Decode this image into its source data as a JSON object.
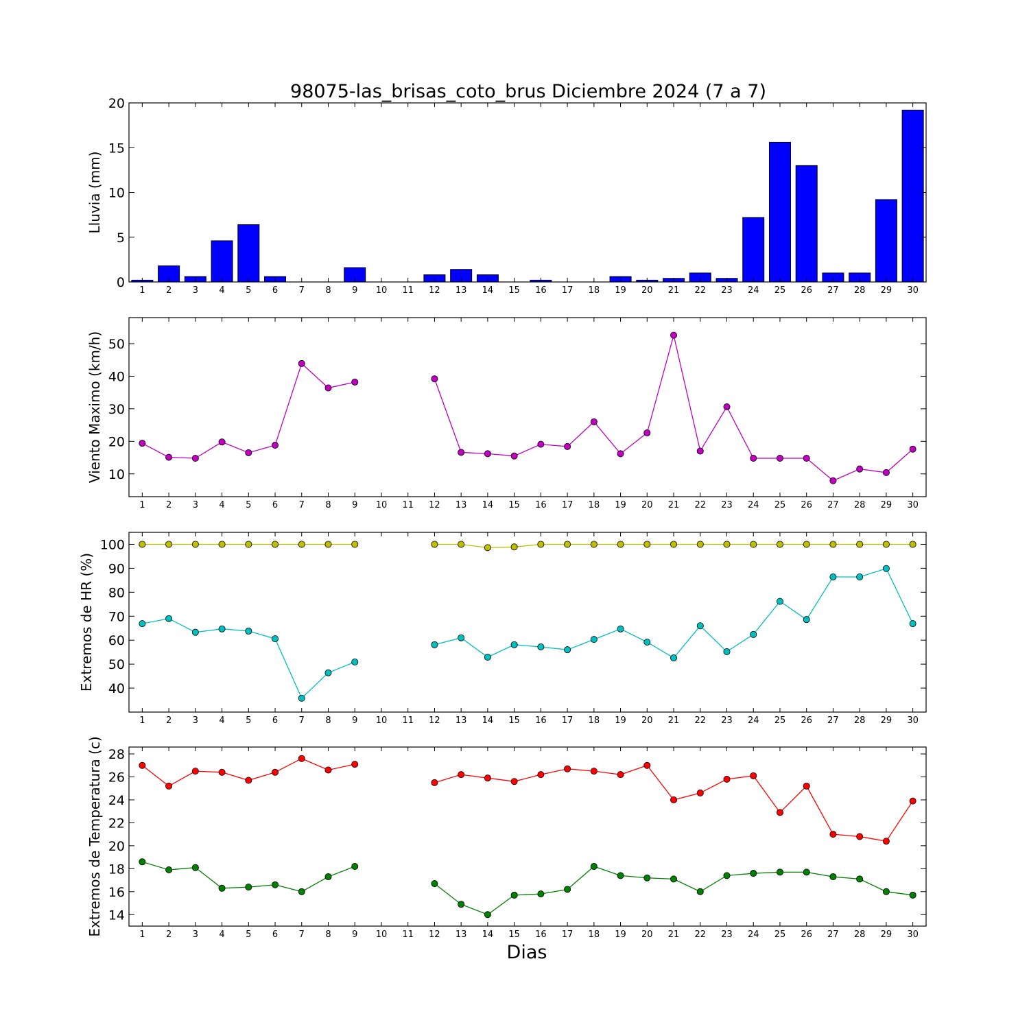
{
  "chart_data": [
    {
      "type": "bar",
      "title": "98075-las_brisas_coto_brus Diciembre 2024  (7 a 7)",
      "ylabel": "Lluvia (mm)",
      "xlabel": "",
      "ylim": [
        0,
        20
      ],
      "yticks": [
        0,
        5,
        10,
        15,
        20
      ],
      "grid": false,
      "color": "#0000ff",
      "categories": [
        1,
        2,
        3,
        4,
        5,
        6,
        7,
        8,
        9,
        10,
        11,
        12,
        13,
        14,
        15,
        16,
        17,
        18,
        19,
        20,
        21,
        22,
        23,
        24,
        25,
        26,
        27,
        28,
        29,
        30
      ],
      "values": [
        0.2,
        1.8,
        0.6,
        4.6,
        6.4,
        0.6,
        0,
        0,
        1.6,
        null,
        null,
        0.8,
        1.4,
        0.8,
        0,
        0.2,
        0,
        0,
        0.6,
        0.2,
        0.4,
        1.0,
        0.4,
        7.2,
        15.6,
        13.0,
        1.0,
        1.0,
        9.2,
        19.2
      ]
    },
    {
      "type": "line",
      "ylabel": "Viento Maximo (km/h)",
      "xlabel": "",
      "ylim": [
        3,
        58
      ],
      "yticks": [
        10,
        20,
        30,
        40,
        50
      ],
      "grid": false,
      "x": [
        1,
        2,
        3,
        4,
        5,
        6,
        7,
        8,
        9,
        10,
        11,
        12,
        13,
        14,
        15,
        16,
        17,
        18,
        19,
        20,
        21,
        22,
        23,
        24,
        25,
        26,
        27,
        28,
        29,
        30
      ],
      "series": [
        {
          "color": "#bf00bf",
          "values": [
            19.4,
            15.1,
            14.8,
            19.8,
            16.5,
            18.8,
            43.9,
            36.4,
            38.2,
            null,
            null,
            39.2,
            16.6,
            16.2,
            15.5,
            19.1,
            18.4,
            26.0,
            16.2,
            22.6,
            52.6,
            17.0,
            30.6,
            14.8,
            14.8,
            14.8,
            7.9,
            11.5,
            10.4,
            17.6
          ]
        }
      ]
    },
    {
      "type": "line",
      "ylabel": "Extremos de HR (%)",
      "xlabel": "",
      "ylim": [
        30,
        105
      ],
      "yticks": [
        40,
        50,
        60,
        70,
        80,
        90,
        100
      ],
      "grid": false,
      "x": [
        1,
        2,
        3,
        4,
        5,
        6,
        7,
        8,
        9,
        10,
        11,
        12,
        13,
        14,
        15,
        16,
        17,
        18,
        19,
        20,
        21,
        22,
        23,
        24,
        25,
        26,
        27,
        28,
        29,
        30
      ],
      "series": [
        {
          "color": "#bfbf00",
          "values": [
            100,
            100,
            100,
            100,
            100,
            100,
            100,
            100,
            100,
            null,
            null,
            100,
            100,
            98.6,
            98.9,
            100,
            100,
            100,
            100,
            100,
            100,
            100,
            100,
            100,
            100,
            100,
            100,
            100,
            100,
            100
          ]
        },
        {
          "color": "#00bfbf",
          "values": [
            66.9,
            69.0,
            63.3,
            64.7,
            63.8,
            60.6,
            35.8,
            46.4,
            50.9,
            null,
            null,
            58.1,
            61.0,
            52.9,
            58.1,
            57.2,
            56.0,
            60.3,
            64.7,
            59.2,
            52.6,
            66.0,
            55.2,
            62.4,
            76.2,
            68.6,
            86.4,
            86.4,
            89.9,
            66.9
          ]
        }
      ]
    },
    {
      "type": "line",
      "ylabel": "Extremos de Temperatura (c)",
      "xlabel": "Dias",
      "ylim": [
        13,
        28.6
      ],
      "yticks": [
        14,
        16,
        18,
        20,
        22,
        24,
        26,
        28
      ],
      "grid": false,
      "x": [
        1,
        2,
        3,
        4,
        5,
        6,
        7,
        8,
        9,
        10,
        11,
        12,
        13,
        14,
        15,
        16,
        17,
        18,
        19,
        20,
        21,
        22,
        23,
        24,
        25,
        26,
        27,
        28,
        29,
        30
      ],
      "series": [
        {
          "color": "#ff0000",
          "values": [
            27.0,
            25.2,
            26.5,
            26.4,
            25.7,
            26.4,
            27.6,
            26.6,
            27.1,
            null,
            null,
            25.5,
            26.2,
            25.9,
            25.6,
            26.2,
            26.7,
            26.5,
            26.2,
            27.0,
            24.0,
            24.6,
            25.8,
            26.1,
            22.9,
            25.2,
            21.0,
            20.8,
            20.4,
            23.9
          ]
        },
        {
          "color": "#008000",
          "values": [
            18.6,
            17.9,
            18.1,
            16.3,
            16.4,
            16.6,
            16.0,
            17.3,
            18.2,
            null,
            null,
            16.7,
            14.9,
            14.0,
            15.7,
            15.8,
            16.2,
            18.2,
            17.4,
            17.2,
            17.1,
            16.0,
            17.4,
            17.6,
            17.7,
            17.7,
            17.3,
            17.1,
            16.0,
            15.7
          ]
        }
      ]
    }
  ]
}
